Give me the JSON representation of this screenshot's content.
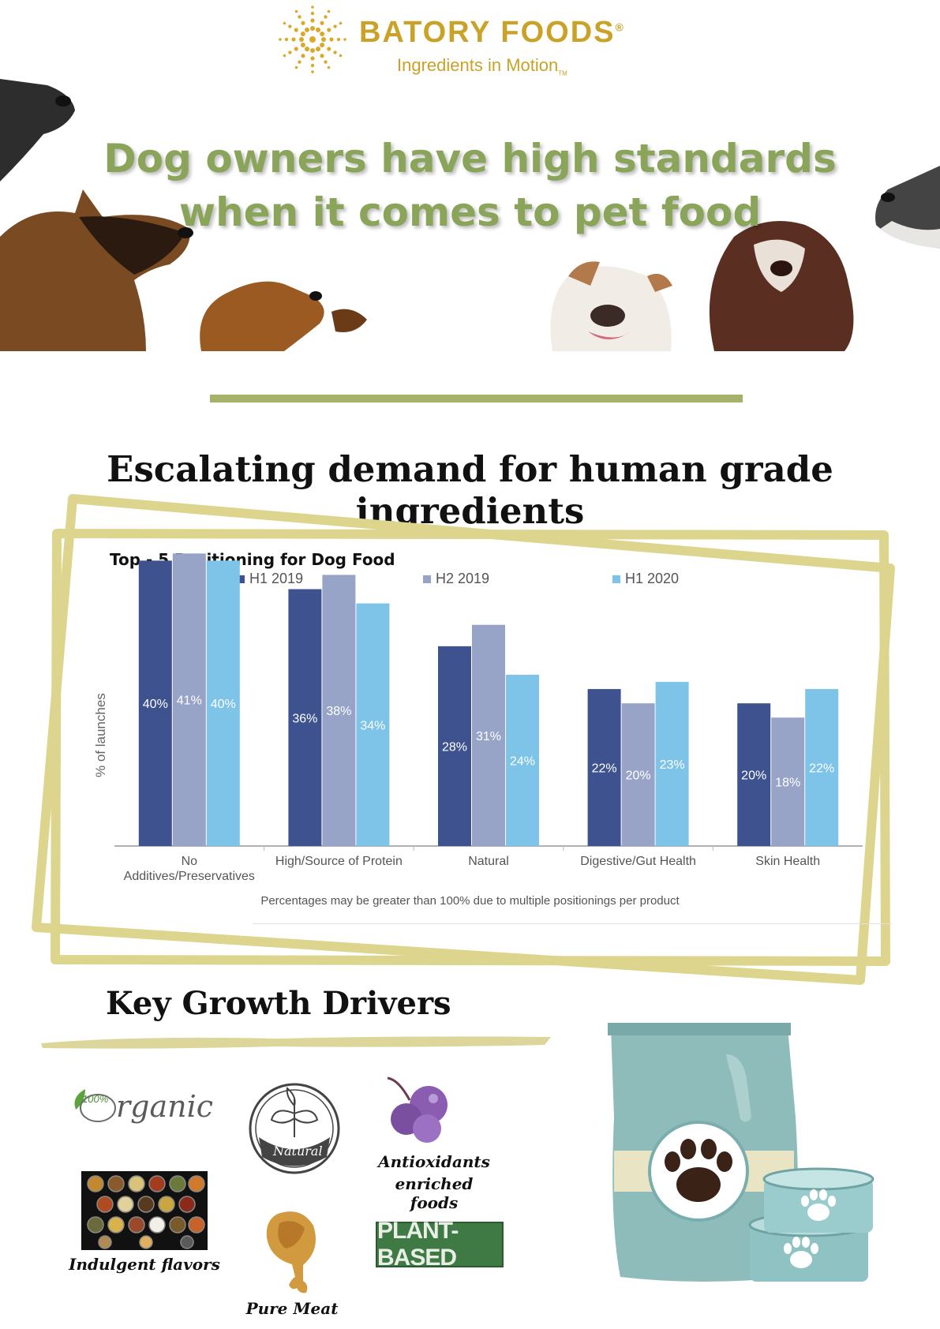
{
  "brand": {
    "name": "BATORY FOODS",
    "registered": "®",
    "tagline": "Ingredients in Motion",
    "tm": "TM",
    "color": "#c9a227"
  },
  "headline": {
    "line1": "Dog owners have high standards",
    "line2": "when it comes to pet food",
    "color": "#8aa55a"
  },
  "demand_title": "Escalating demand for human grade ingredients",
  "chart_data": {
    "type": "bar",
    "title": "Top - 5 Positioning for Dog Food",
    "ylabel": "% of launches",
    "xlabel": "",
    "categories": [
      "No Additives/Preservatives",
      "High/Source of Protein",
      "Natural",
      "Digestive/Gut Health",
      "Skin Health"
    ],
    "category_lines": [
      [
        "No",
        "Additives/Preservatives"
      ],
      [
        "High/Source of Protein"
      ],
      [
        "Natural"
      ],
      [
        "Digestive/Gut Health"
      ],
      [
        "Skin Health"
      ]
    ],
    "series": [
      {
        "name": "H1 2019",
        "color": "#3e528f",
        "values": [
          40,
          36,
          28,
          22,
          20
        ],
        "labels": [
          "40%",
          "36%",
          "28%",
          "22%",
          "20%"
        ]
      },
      {
        "name": "H2 2019",
        "color": "#97a4c8",
        "values": [
          41,
          38,
          31,
          20,
          18
        ],
        "labels": [
          "41%",
          "38%",
          "31%",
          "20%",
          "18%"
        ]
      },
      {
        "name": "H1 2020",
        "color": "#7ec3e8",
        "values": [
          40,
          34,
          24,
          23,
          22
        ],
        "labels": [
          "40%",
          "34%",
          "24%",
          "23%",
          "22%"
        ]
      }
    ],
    "ylim": [
      0,
      50
    ],
    "grid": false,
    "legend": "top",
    "footnote": "Percentages may be greater than 100% due to multiple positionings per product"
  },
  "growth": {
    "title": "Key Growth Drivers",
    "organic_badge": "100%",
    "organic_word": "rganic",
    "natural_badge": "Natural",
    "antioxidants_line1": "Antioxidants",
    "antioxidants_line2": "enriched foods",
    "indulgent": "Indulgent flavors",
    "pure_meat": "Pure Meat",
    "plant_based": "PLANT-BASED"
  }
}
